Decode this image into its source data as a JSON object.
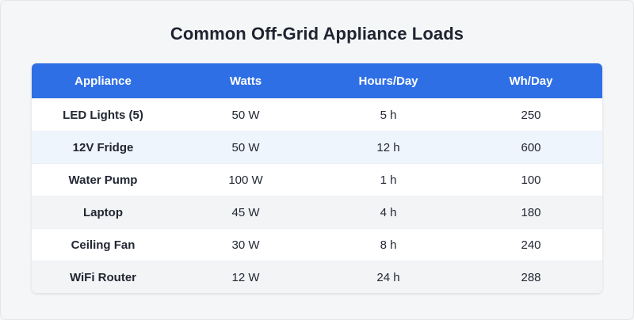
{
  "title": "Common Off-Grid Appliance Loads",
  "colors": {
    "header_bg": "#2f6fe6",
    "header_text": "#ffffff",
    "row_highlight": "#eef5fd",
    "row_alt": "#f3f4f6"
  },
  "table": {
    "headers": [
      "Appliance",
      "Watts",
      "Hours/Day",
      "Wh/Day"
    ],
    "rows": [
      [
        "LED Lights (5)",
        "50 W",
        "5 h",
        "250"
      ],
      [
        "12V Fridge",
        "50 W",
        "12 h",
        "600"
      ],
      [
        "Water Pump",
        "100 W",
        "1 h",
        "100"
      ],
      [
        "Laptop",
        "45 W",
        "4 h",
        "180"
      ],
      [
        "Ceiling Fan",
        "30 W",
        "8 h",
        "240"
      ],
      [
        "WiFi Router",
        "12 W",
        "24 h",
        "288"
      ]
    ]
  }
}
